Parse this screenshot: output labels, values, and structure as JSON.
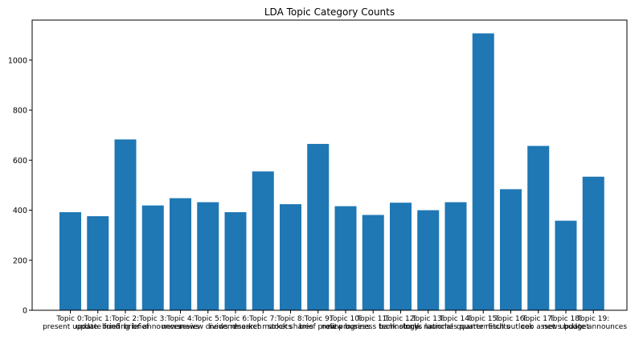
{
  "chart_data": {
    "type": "bar",
    "title": "LDA Topic Category Counts",
    "xlabel": "",
    "ylabel": "",
    "ylim": [
      0,
      1160
    ],
    "yticks": [
      0,
      200,
      400,
      600,
      800,
      1000
    ],
    "grid": false,
    "bar_color": "#1f77b4",
    "categories": [
      [
        "Topic 0:",
        "present update"
      ],
      [
        "Topic 1:",
        "update fund"
      ],
      [
        "Topic 2:",
        "briefing brief"
      ],
      [
        "Topic 3:",
        "brief announces"
      ],
      [
        "Topic 4:",
        "newsnews"
      ],
      [
        "Topic 5:",
        "review dividend"
      ],
      [
        "Topic 6:",
        "news research"
      ],
      [
        "Topic 7:",
        "market markets"
      ],
      [
        "Topic 8:",
        "stock shares"
      ],
      [
        "Topic 9:",
        "brief profit"
      ],
      [
        "Topic 10:",
        "new progress"
      ],
      [
        "Topic 11:",
        "new business technology"
      ],
      [
        "Topic 12:",
        "bank stocks"
      ],
      [
        "Topic 13:",
        "bank national"
      ],
      [
        "Topic 14:",
        "launches quarter"
      ],
      [
        "Topic 15:",
        "quarter results"
      ],
      [
        "Topic 16:",
        "fitch outlook"
      ],
      [
        "Topic 17:",
        "ceo asset"
      ],
      [
        "Topic 18:",
        "news budget"
      ],
      [
        "Topic 19:",
        "update announces"
      ]
    ],
    "values": [
      392,
      376,
      683,
      419,
      448,
      432,
      392,
      555,
      424,
      665,
      416,
      381,
      430,
      400,
      432,
      1107,
      484,
      657,
      358,
      534
    ]
  }
}
